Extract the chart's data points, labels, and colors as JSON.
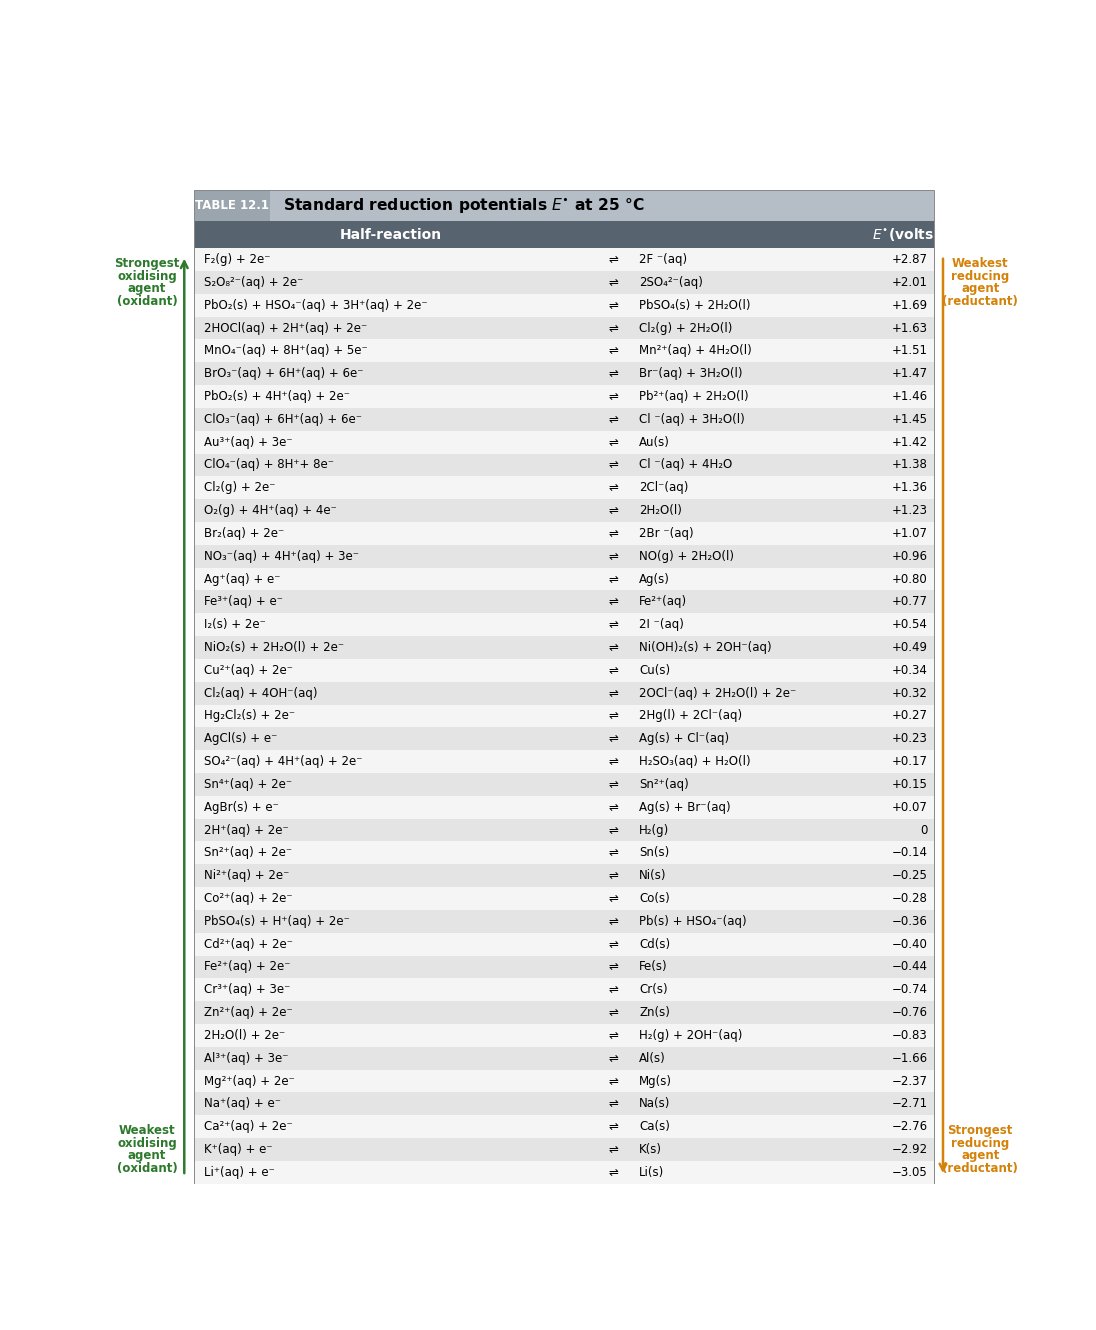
{
  "title_tag": "TABLE 12.1",
  "rows": [
    [
      "F₂(g) + 2e⁻",
      "⇌",
      "2F ⁻(aq)",
      "+2.87"
    ],
    [
      "S₂O₈²⁻(aq) + 2e⁻",
      "⇌",
      "2SO₄²⁻(aq)",
      "+2.01"
    ],
    [
      "PbO₂(s) + HSO₄⁻(aq) + 3H⁺(aq) + 2e⁻",
      "⇌",
      "PbSO₄(s) + 2H₂O(l)",
      "+1.69"
    ],
    [
      "2HOCl(aq) + 2H⁺(aq) + 2e⁻",
      "⇌",
      "Cl₂(g) + 2H₂O(l)",
      "+1.63"
    ],
    [
      "MnO₄⁻(aq) + 8H⁺(aq) + 5e⁻",
      "⇌",
      "Mn²⁺(aq) + 4H₂O(l)",
      "+1.51"
    ],
    [
      "BrO₃⁻(aq) + 6H⁺(aq) + 6e⁻",
      "⇌",
      "Br⁻(aq) + 3H₂O(l)",
      "+1.47"
    ],
    [
      "PbO₂(s) + 4H⁺(aq) + 2e⁻",
      "⇌",
      "Pb²⁺(aq) + 2H₂O(l)",
      "+1.46"
    ],
    [
      "ClO₃⁻(aq) + 6H⁺(aq) + 6e⁻",
      "⇌",
      "Cl ⁻(aq) + 3H₂O(l)",
      "+1.45"
    ],
    [
      "Au³⁺(aq) + 3e⁻",
      "⇌",
      "Au(s)",
      "+1.42"
    ],
    [
      "ClO₄⁻(aq) + 8H⁺+ 8e⁻",
      "⇌",
      "Cl ⁻(aq) + 4H₂O",
      "+1.38"
    ],
    [
      "Cl₂(g) + 2e⁻",
      "⇌",
      "2Cl⁻(aq)",
      "+1.36"
    ],
    [
      "O₂(g) + 4H⁺(aq) + 4e⁻",
      "⇌",
      "2H₂O(l)",
      "+1.23"
    ],
    [
      "Br₂(aq) + 2e⁻",
      "⇌",
      "2Br ⁻(aq)",
      "+1.07"
    ],
    [
      "NO₃⁻(aq) + 4H⁺(aq) + 3e⁻",
      "⇌",
      "NO(g) + 2H₂O(l)",
      "+0.96"
    ],
    [
      "Ag⁺(aq) + e⁻",
      "⇌",
      "Ag(s)",
      "+0.80"
    ],
    [
      "Fe³⁺(aq) + e⁻",
      "⇌",
      "Fe²⁺(aq)",
      "+0.77"
    ],
    [
      "I₂(s) + 2e⁻",
      "⇌",
      "2I ⁻(aq)",
      "+0.54"
    ],
    [
      "NiO₂(s) + 2H₂O(l) + 2e⁻",
      "⇌",
      "Ni(OH)₂(s) + 2OH⁻(aq)",
      "+0.49"
    ],
    [
      "Cu²⁺(aq) + 2e⁻",
      "⇌",
      "Cu(s)",
      "+0.34"
    ],
    [
      "Cl₂(aq) + 4OH⁻(aq)",
      "⇌",
      "2OCl⁻(aq) + 2H₂O(l) + 2e⁻",
      "+0.32"
    ],
    [
      "Hg₂Cl₂(s) + 2e⁻",
      "⇌",
      "2Hg(l) + 2Cl⁻(aq)",
      "+0.27"
    ],
    [
      "AgCl(s) + e⁻",
      "⇌",
      "Ag(s) + Cl⁻(aq)",
      "+0.23"
    ],
    [
      "SO₄²⁻(aq) + 4H⁺(aq) + 2e⁻",
      "⇌",
      "H₂SO₃(aq) + H₂O(l)",
      "+0.17"
    ],
    [
      "Sn⁴⁺(aq) + 2e⁻",
      "⇌",
      "Sn²⁺(aq)",
      "+0.15"
    ],
    [
      "AgBr(s) + e⁻",
      "⇌",
      "Ag(s) + Br⁻(aq)",
      "+0.07"
    ],
    [
      "2H⁺(aq) + 2e⁻",
      "⇌",
      "H₂(g)",
      "0"
    ],
    [
      "Sn²⁺(aq) + 2e⁻",
      "⇌",
      "Sn(s)",
      "−0.14"
    ],
    [
      "Ni²⁺(aq) + 2e⁻",
      "⇌",
      "Ni(s)",
      "−0.25"
    ],
    [
      "Co²⁺(aq) + 2e⁻",
      "⇌",
      "Co(s)",
      "−0.28"
    ],
    [
      "PbSO₄(s) + H⁺(aq) + 2e⁻",
      "⇌",
      "Pb(s) + HSO₄⁻(aq)",
      "−0.36"
    ],
    [
      "Cd²⁺(aq) + 2e⁻",
      "⇌",
      "Cd(s)",
      "−0.40"
    ],
    [
      "Fe²⁺(aq) + 2e⁻",
      "⇌",
      "Fe(s)",
      "−0.44"
    ],
    [
      "Cr³⁺(aq) + 3e⁻",
      "⇌",
      "Cr(s)",
      "−0.74"
    ],
    [
      "Zn²⁺(aq) + 2e⁻",
      "⇌",
      "Zn(s)",
      "−0.76"
    ],
    [
      "2H₂O(l) + 2e⁻",
      "⇌",
      "H₂(g) + 2OH⁻(aq)",
      "−0.83"
    ],
    [
      "Al³⁺(aq) + 3e⁻",
      "⇌",
      "Al(s)",
      "−1.66"
    ],
    [
      "Mg²⁺(aq) + 2e⁻",
      "⇌",
      "Mg(s)",
      "−2.37"
    ],
    [
      "Na⁺(aq) + e⁻",
      "⇌",
      "Na(s)",
      "−2.71"
    ],
    [
      "Ca²⁺(aq) + 2e⁻",
      "⇌",
      "Ca(s)",
      "−2.76"
    ],
    [
      "K⁺(aq) + e⁻",
      "⇌",
      "K(s)",
      "−2.92"
    ],
    [
      "Li⁺(aq) + e⁻",
      "⇌",
      "Li(s)",
      "−3.05"
    ]
  ],
  "header_bg": "#586370",
  "title_bg": "#b5bec6",
  "title_tag_bg": "#9aa5ae",
  "alt_row_bg": "#e4e4e4",
  "white_row_bg": "#f5f5f5",
  "green_color": "#2d7a2d",
  "orange_color": "#d4820a",
  "left_label_top": [
    "Strongest",
    "oxidising",
    "agent",
    "(oxidant)"
  ],
  "left_label_bottom": [
    "Weakest",
    "oxidising",
    "agent",
    "(oxidant)"
  ],
  "right_label_top": [
    "Weakest",
    "reducing",
    "agent",
    "(reductant)"
  ],
  "right_label_bottom": [
    "Strongest",
    "reducing",
    "agent",
    "(reductant)"
  ]
}
